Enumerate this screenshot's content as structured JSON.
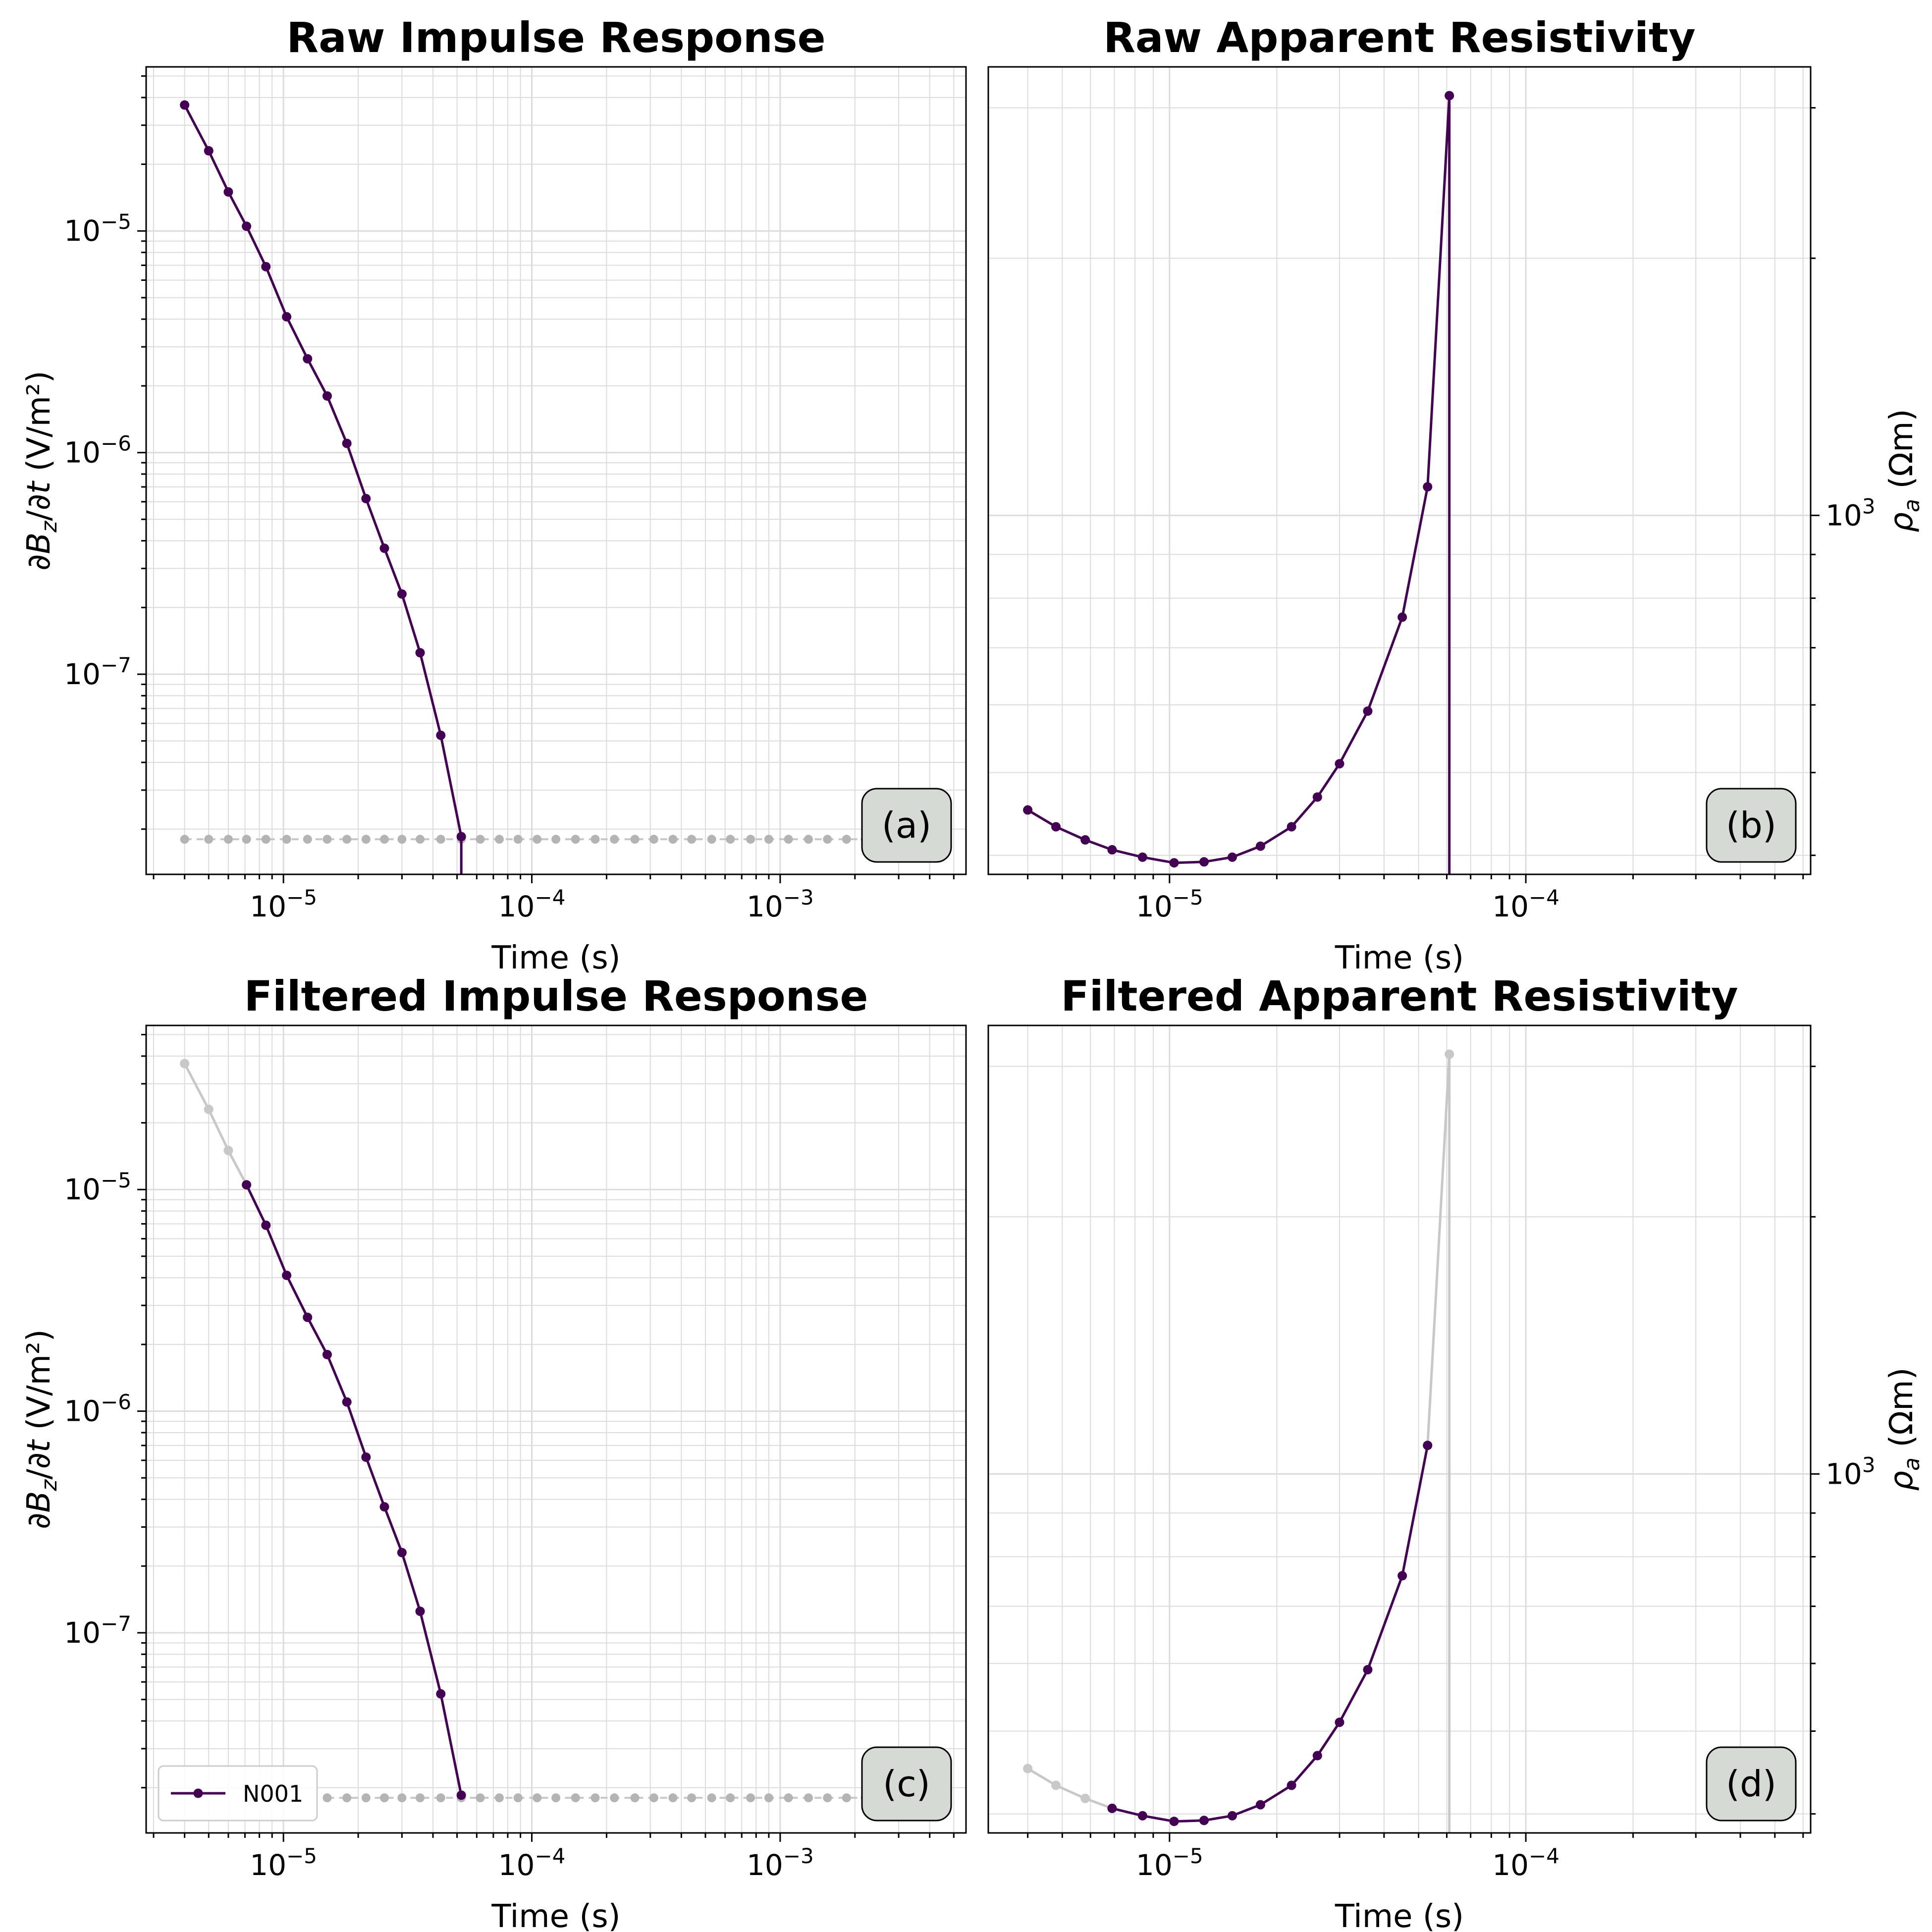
{
  "figure": {
    "colors": {
      "series": "#440154",
      "masked": "#c8c8c8",
      "grid": "#dcdcdc",
      "panel_label_bg": "#d5dad4"
    }
  },
  "chart_data": [
    {
      "id": "a",
      "type": "line",
      "title": "Raw Impulse Response",
      "xlabel": "Time (s)",
      "ylabel": "∂B_z/∂t (V/m²)",
      "ylabel_side": "left",
      "panel_label": "(a)",
      "xscale": "log",
      "yscale": "log",
      "xlim": [
        2.8e-06,
        0.0056
      ],
      "ylim": [
        1.25e-08,
        5.5e-05
      ],
      "xticks": [
        {
          "v": 1e-05,
          "label": "10^{-5}"
        },
        {
          "v": 0.0001,
          "label": "10^{-4}"
        },
        {
          "v": 0.001,
          "label": "10^{-3}"
        }
      ],
      "yticks": [
        {
          "v": 1e-07,
          "label": "10^{-7}"
        },
        {
          "v": 1e-06,
          "label": "10^{-6}"
        },
        {
          "v": 1e-05,
          "label": "10^{-5}"
        }
      ],
      "grid": true,
      "series": [
        {
          "role": "active",
          "x": [
            4e-06,
            5e-06,
            6e-06,
            7.1e-06,
            8.5e-06,
            1.03e-05,
            1.25e-05,
            1.5e-05,
            1.8e-05,
            2.15e-05,
            2.55e-05,
            3e-05,
            3.55e-05,
            4.3e-05,
            5.2e-05
          ],
          "y": [
            3.7e-05,
            2.3e-05,
            1.5e-05,
            1.05e-05,
            6.9e-06,
            4.1e-06,
            2.65e-06,
            1.8e-06,
            1.1e-06,
            6.2e-07,
            3.7e-07,
            2.3e-07,
            1.25e-07,
            5.3e-08,
            1.85e-08
          ],
          "drop_to_bottom": true
        },
        {
          "role": "masked_floor",
          "x": [
            4e-06,
            5e-06,
            6e-06,
            7.1e-06,
            8.5e-06,
            1.03e-05,
            1.25e-05,
            1.5e-05,
            1.8e-05,
            2.15e-05,
            2.55e-05,
            3e-05,
            3.55e-05,
            4.3e-05,
            5.2e-05,
            6.2e-05,
            7.4e-05,
            8.8e-05,
            0.000105,
            0.000125,
            0.00015,
            0.00018,
            0.000215,
            0.00026,
            0.00031,
            0.00037,
            0.00044,
            0.00053,
            0.00063,
            0.00076,
            0.0009,
            0.00108,
            0.0013,
            0.00155,
            0.00185,
            0.0022
          ],
          "y_const": 1.8e-08
        }
      ]
    },
    {
      "id": "b",
      "type": "line",
      "title": "Raw Apparent Resistivity",
      "xlabel": "Time (s)",
      "ylabel": "ρ_a (Ωm)",
      "ylabel_side": "right",
      "panel_label": "(b)",
      "xscale": "log",
      "yscale": "log",
      "xlim": [
        3.1e-06,
        0.00063
      ],
      "ylim": [
        380,
        3350
      ],
      "xticks": [
        {
          "v": 1e-05,
          "label": "10^{-5}"
        },
        {
          "v": 0.0001,
          "label": "10^{-4}"
        }
      ],
      "yticks": [
        {
          "v": 1000,
          "label": "10^{3}"
        }
      ],
      "grid": true,
      "series": [
        {
          "role": "active",
          "x": [
            4e-06,
            4.8e-06,
            5.8e-06,
            6.9e-06,
            8.4e-06,
            1.03e-05,
            1.25e-05,
            1.5e-05,
            1.8e-05,
            2.2e-05,
            2.6e-05,
            3e-05,
            3.6e-05,
            4.5e-05,
            5.3e-05,
            6.1e-05
          ],
          "y": [
            452,
            432,
            417,
            406,
            398,
            392,
            393,
            398,
            410,
            432,
            468,
            512,
            590,
            760,
            1080,
            3100
          ],
          "drop_to_bottom": true
        }
      ]
    },
    {
      "id": "c",
      "type": "line",
      "title": "Filtered Impulse Response",
      "xlabel": "Time (s)",
      "ylabel": "∂B_z/∂t (V/m²)",
      "ylabel_side": "left",
      "panel_label": "(c)",
      "legend": {
        "placement": "lower left",
        "entries": [
          "N001"
        ]
      },
      "xscale": "log",
      "yscale": "log",
      "xlim": [
        2.8e-06,
        0.0056
      ],
      "ylim": [
        1.25e-08,
        5.5e-05
      ],
      "xticks": [
        {
          "v": 1e-05,
          "label": "10^{-5}"
        },
        {
          "v": 0.0001,
          "label": "10^{-4}"
        },
        {
          "v": 0.001,
          "label": "10^{-3}"
        }
      ],
      "yticks": [
        {
          "v": 1e-07,
          "label": "10^{-7}"
        },
        {
          "v": 1e-06,
          "label": "10^{-6}"
        },
        {
          "v": 1e-05,
          "label": "10^{-5}"
        }
      ],
      "grid": true,
      "series": [
        {
          "role": "masked",
          "x": [
            4e-06,
            5e-06,
            6e-06,
            7.1e-06
          ],
          "y": [
            3.7e-05,
            2.3e-05,
            1.5e-05,
            1.05e-05
          ]
        },
        {
          "role": "active",
          "name": "N001",
          "x": [
            7.1e-06,
            8.5e-06,
            1.03e-05,
            1.25e-05,
            1.5e-05,
            1.8e-05,
            2.15e-05,
            2.55e-05,
            3e-05,
            3.55e-05,
            4.3e-05,
            5.2e-05
          ],
          "y": [
            1.05e-05,
            6.9e-06,
            4.1e-06,
            2.65e-06,
            1.8e-06,
            1.1e-06,
            6.2e-07,
            3.7e-07,
            2.3e-07,
            1.25e-07,
            5.3e-08,
            1.85e-08
          ]
        },
        {
          "role": "masked_floor",
          "x": [
            5.2e-05,
            6.2e-05,
            7.4e-05,
            8.8e-05,
            0.000105,
            0.000125,
            0.00015,
            0.00018,
            0.000215,
            0.00026,
            0.00031,
            0.00037,
            0.00044,
            0.00053,
            0.00063,
            0.00076,
            0.0009,
            0.00108,
            0.0013,
            0.00155,
            0.00185,
            0.0022,
            1.5e-05,
            1.8e-05,
            2.15e-05,
            2.55e-05,
            3e-05,
            3.55e-05,
            4.3e-05
          ],
          "y_const": 1.8e-08
        }
      ]
    },
    {
      "id": "d",
      "type": "line",
      "title": "Filtered Apparent Resistivity",
      "xlabel": "Time (s)",
      "ylabel": "ρ_a (Ωm)",
      "ylabel_side": "right",
      "panel_label": "(d)",
      "xscale": "log",
      "yscale": "log",
      "xlim": [
        3.1e-06,
        0.00063
      ],
      "ylim": [
        380,
        3350
      ],
      "xticks": [
        {
          "v": 1e-05,
          "label": "10^{-5}"
        },
        {
          "v": 0.0001,
          "label": "10^{-4}"
        }
      ],
      "yticks": [
        {
          "v": 1000,
          "label": "10^{3}"
        }
      ],
      "grid": true,
      "series": [
        {
          "role": "masked",
          "x": [
            4e-06,
            4.8e-06,
            5.8e-06,
            6.9e-06
          ],
          "y": [
            452,
            432,
            417,
            406
          ]
        },
        {
          "role": "masked",
          "x": [
            5.3e-05,
            6.1e-05
          ],
          "y": [
            1080,
            3100
          ],
          "drop_to_bottom": true
        },
        {
          "role": "active",
          "x": [
            6.9e-06,
            8.4e-06,
            1.03e-05,
            1.25e-05,
            1.5e-05,
            1.8e-05,
            2.2e-05,
            2.6e-05,
            3e-05,
            3.6e-05,
            4.5e-05,
            5.3e-05
          ],
          "y": [
            406,
            398,
            392,
            393,
            398,
            410,
            432,
            468,
            512,
            590,
            760,
            1080
          ]
        }
      ]
    }
  ]
}
